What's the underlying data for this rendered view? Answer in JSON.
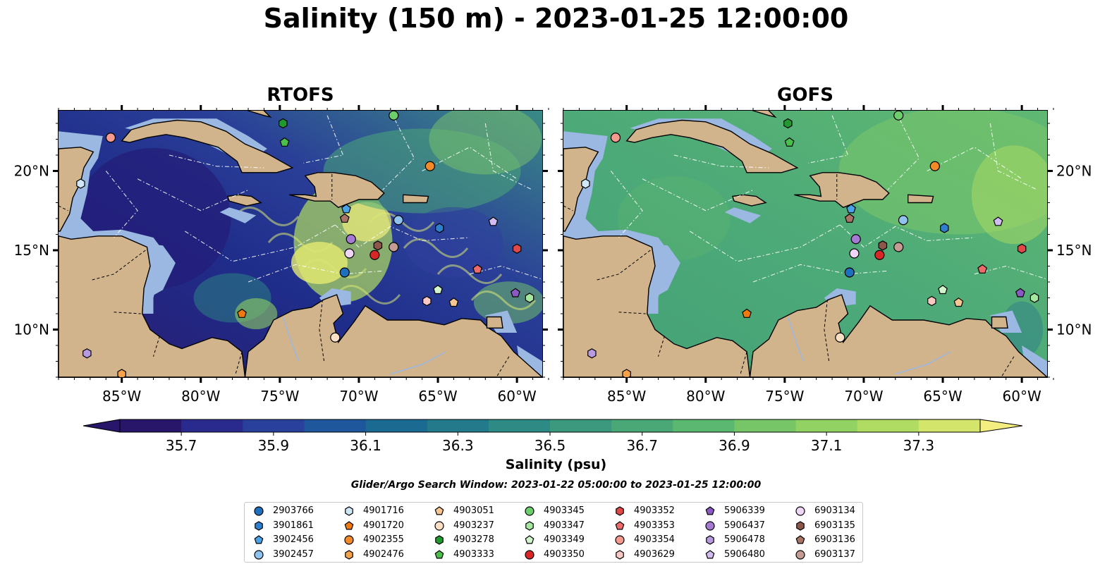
{
  "title": "Salinity (150 m) - 2023-01-25 12:00:00",
  "panels": [
    {
      "title": "RTOFS",
      "model": "rtofs"
    },
    {
      "title": "GOFS",
      "model": "gofs"
    }
  ],
  "axes": {
    "lon_ticks": [
      "85°W",
      "80°W",
      "75°W",
      "70°W",
      "65°W",
      "60°W"
    ],
    "lat_ticks": [
      "20°N",
      "15°N",
      "10°N"
    ],
    "lon_values": [
      -85,
      -80,
      -75,
      -70,
      -65,
      -60
    ],
    "lat_values": [
      20,
      15,
      10
    ],
    "extent": {
      "lon": [
        -89,
        -58.4
      ],
      "lat": [
        7,
        23.8
      ]
    }
  },
  "colorbar": {
    "label": "Salinity (psu)",
    "ticks": [
      "35.7",
      "35.9",
      "36.1",
      "36.3",
      "36.5",
      "36.7",
      "36.9",
      "37.1",
      "37.3"
    ],
    "colors": [
      "#27166a",
      "#2a2a8e",
      "#29419d",
      "#1e579c",
      "#1a6a91",
      "#227a8a",
      "#2e8a84",
      "#3d997e",
      "#4aa876",
      "#5bb870",
      "#76c667",
      "#92d262",
      "#b1dc63",
      "#d4e56c",
      "#f4ed7f"
    ],
    "extend": "both"
  },
  "search_window": "Glider/Argo Search Window: 2023-01-22 05:00:00 to 2023-01-25 12:00:00",
  "floats": [
    {
      "id": "2903766",
      "marker": "circle",
      "color": "#1f6fbf",
      "lon": -70.9,
      "lat": 13.6
    },
    {
      "id": "3901861",
      "marker": "hexagon",
      "color": "#2f7fd0",
      "lon": -64.9,
      "lat": 16.4
    },
    {
      "id": "3902456",
      "marker": "pentagon",
      "color": "#4aa3e6",
      "lon": -70.8,
      "lat": 17.6
    },
    {
      "id": "3902457",
      "marker": "circle",
      "color": "#8ec3ef",
      "lon": -67.5,
      "lat": 16.9
    },
    {
      "id": "4901716",
      "marker": "hexagon",
      "color": "#cfe8f8",
      "lon": -87.6,
      "lat": 19.2
    },
    {
      "id": "4901720",
      "marker": "pentagon",
      "color": "#f07a10",
      "lon": -77.4,
      "lat": 11.0
    },
    {
      "id": "4902355",
      "marker": "circle",
      "color": "#f28a2a",
      "lon": -65.5,
      "lat": 20.3
    },
    {
      "id": "4902476",
      "marker": "hexagon",
      "color": "#f6a24a",
      "lon": -85.0,
      "lat": 7.2
    },
    {
      "id": "4903051",
      "marker": "pentagon",
      "color": "#f8c691",
      "lon": -64.0,
      "lat": 11.7
    },
    {
      "id": "4903237",
      "marker": "circle",
      "color": "#fbe0c6",
      "lon": -71.5,
      "lat": 9.5
    },
    {
      "id": "4903278",
      "marker": "hexagon",
      "color": "#1f9a2f",
      "lon": -74.8,
      "lat": 23.0
    },
    {
      "id": "4903333",
      "marker": "pentagon",
      "color": "#4bbf4b",
      "lon": -74.7,
      "lat": 21.8
    },
    {
      "id": "4903345",
      "marker": "circle",
      "color": "#6ccf6c",
      "lon": -67.8,
      "lat": 23.5
    },
    {
      "id": "4903347",
      "marker": "hexagon",
      "color": "#a6e8a0",
      "lon": -59.2,
      "lat": 12.0
    },
    {
      "id": "4903349",
      "marker": "pentagon",
      "color": "#d2f4cc",
      "lon": -65.0,
      "lat": 12.5
    },
    {
      "id": "4903350",
      "marker": "circle",
      "color": "#d92626",
      "lon": -69.0,
      "lat": 14.7
    },
    {
      "id": "4903352",
      "marker": "hexagon",
      "color": "#e04848",
      "lon": -60.0,
      "lat": 15.1
    },
    {
      "id": "4903353",
      "marker": "pentagon",
      "color": "#ee6b6b",
      "lon": -62.5,
      "lat": 13.8
    },
    {
      "id": "4903354",
      "marker": "circle",
      "color": "#f59a8e",
      "lon": -85.7,
      "lat": 22.1
    },
    {
      "id": "4903629",
      "marker": "hexagon",
      "color": "#fbc9c4",
      "lon": -65.7,
      "lat": 11.8
    },
    {
      "id": "5906339",
      "marker": "pentagon",
      "color": "#8a5ac2",
      "lon": -60.1,
      "lat": 12.3
    },
    {
      "id": "5906437",
      "marker": "circle",
      "color": "#a57ad3",
      "lon": -70.5,
      "lat": 15.7
    },
    {
      "id": "5906478",
      "marker": "hexagon",
      "color": "#b89ae0",
      "lon": -87.2,
      "lat": 8.5
    },
    {
      "id": "5906480",
      "marker": "pentagon",
      "color": "#d3bdf0",
      "lon": -61.5,
      "lat": 16.8
    },
    {
      "id": "6903134",
      "marker": "circle",
      "color": "#efd6f6",
      "lon": -70.6,
      "lat": 14.8
    },
    {
      "id": "6903135",
      "marker": "hexagon",
      "color": "#8c564b",
      "lon": -68.8,
      "lat": 15.3
    },
    {
      "id": "6903136",
      "marker": "pentagon",
      "color": "#a97366",
      "lon": -70.9,
      "lat": 17.0
    },
    {
      "id": "6903137",
      "marker": "circle",
      "color": "#c49c94",
      "lon": -67.8,
      "lat": 15.2
    }
  ]
}
